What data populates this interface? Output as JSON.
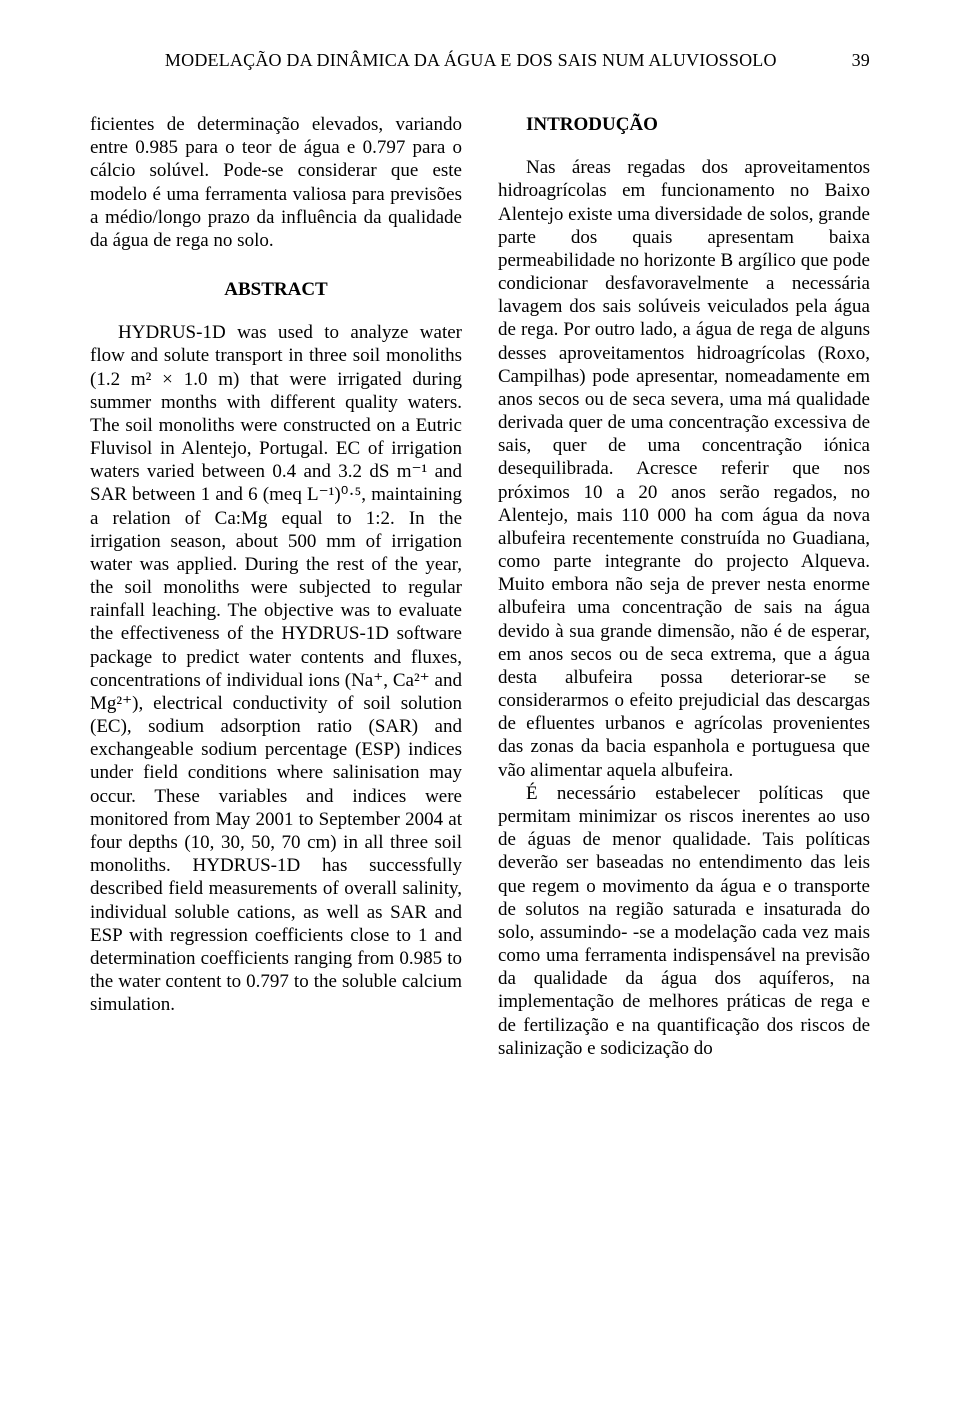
{
  "running_head": {
    "title": "MODELAÇÃO DA DINÂMICA DA ÁGUA E DOS SAIS NUM ALUVIOSSOLO",
    "page_number": "39"
  },
  "left_column": {
    "para1": "ficientes de determinação elevados, variando entre 0.985 para o teor de água e 0.797 para o cálcio solúvel. Pode-se considerar que este modelo é uma ferramenta valiosa para previsões a médio/longo prazo da influência da qualidade da água de rega no solo.",
    "abstract_heading": "ABSTRACT",
    "para2": "HYDRUS-1D was used to analyze water flow and solute transport in three soil monoliths (1.2 m² × 1.0 m) that were irrigated during summer months with different quality waters. The soil monoliths were constructed on a Eutric Fluvisol in Alentejo, Portugal. EC of irrigation waters varied between 0.4 and 3.2 dS m⁻¹ and SAR between 1 and 6 (meq L⁻¹)⁰·⁵, maintaining a relation of Ca:Mg equal to 1:2. In the irrigation season, about 500 mm of irrigation water was applied. During the rest of the year, the soil monoliths were subjected to regular rainfall leaching. The objective was to evaluate the effectiveness of the HYDRUS-1D software package to predict water contents and fluxes, concentrations of individual ions (Na⁺, Ca²⁺ and Mg²⁺), electrical conductivity of soil solution (EC), sodium adsorption ratio (SAR) and exchangeable sodium percentage (ESP) indices under field conditions where salinisation may occur. These variables and indices were monitored from May 2001 to September 2004 at four depths (10, 30, 50, 70 cm) in all three soil monoliths. HYDRUS-1D has successfully described field measurements of overall salinity, individual soluble cations, as well as SAR and ESP with regression coefficients close to 1 and determination coefficients ranging from 0.985 to the water content to 0.797 to the soluble calcium simulation."
  },
  "right_column": {
    "intro_heading": "INTRODUÇÃO",
    "para1": "Nas áreas regadas dos aproveitamentos hidroagrícolas em funcionamento no Baixo Alentejo existe uma diversidade de solos, grande parte dos quais apresentam baixa permeabilidade no horizonte B argílico que pode condicionar desfavoravelmente a necessária lavagem dos sais solúveis veiculados pela água de rega. Por outro lado, a água de rega de alguns desses aproveitamentos hidroagrícolas (Roxo, Campilhas) pode apresentar, nomeadamente em anos secos ou de seca severa, uma má qualidade derivada quer de uma concentração excessiva de sais, quer de uma concentração iónica desequilibrada. Acresce referir que nos próximos 10 a 20 anos serão regados, no Alentejo, mais 110 000 ha com água da nova albufeira recentemente construída no Guadiana, como parte integrante do projecto Alqueva. Muito embora não seja de prever nesta enorme albufeira uma concentração de sais na água devido à sua grande dimensão, não é de esperar, em anos secos ou de seca extrema, que a água desta albufeira possa deteriorar-se se considerarmos o efeito prejudicial das descargas de efluentes urbanos e agrícolas provenientes das zonas da bacia espanhola e portuguesa que vão alimentar aquela albufeira.",
    "para2": "É necessário estabelecer políticas que permitam minimizar os riscos inerentes ao uso de águas de menor qualidade. Tais políticas deverão ser baseadas no entendimento das leis que regem o movimento da água e o transporte de solutos na região saturada e insaturada do solo, assumindo- -se a modelação cada vez mais como uma ferramenta indispensável na previsão da qualidade da água dos aquíferos, na implementação de melhores práticas de rega e de fertilização e na quantificação dos riscos de salinização e sodicização do"
  }
}
